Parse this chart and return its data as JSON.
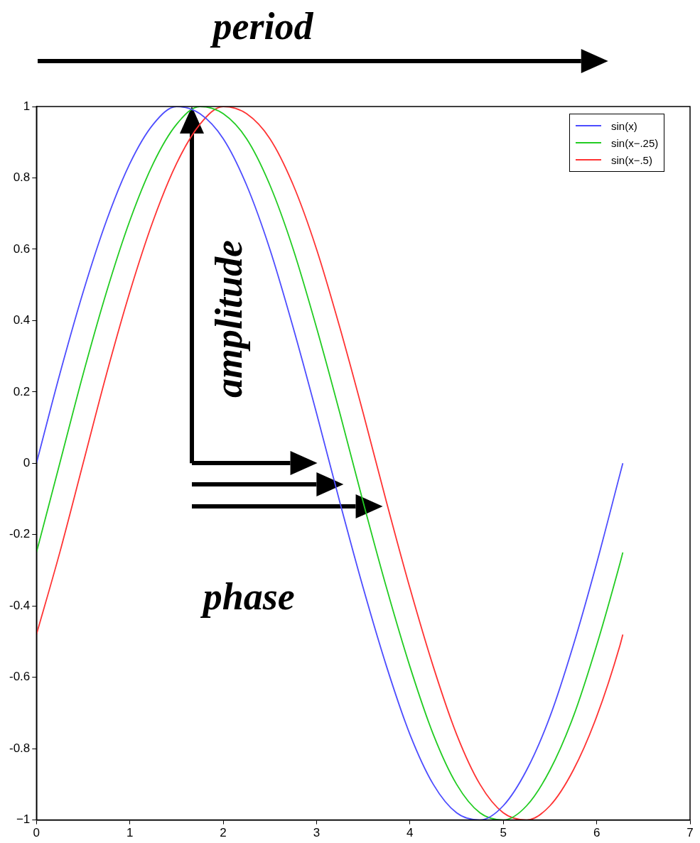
{
  "chart_data": {
    "type": "line",
    "annotations": [
      "period",
      "amplitude",
      "phase"
    ],
    "x": [
      0,
      0.25,
      0.5,
      0.75,
      1,
      1.25,
      1.5,
      1.75,
      2,
      2.25,
      2.5,
      2.75,
      3,
      3.25,
      3.5,
      3.75,
      4,
      4.25,
      4.5,
      4.75,
      5,
      5.25,
      5.5,
      5.75,
      6,
      6.25,
      6.28
    ],
    "series": [
      {
        "name": "sin(x)",
        "color": "#4d4dff",
        "values": [
          0,
          0.25,
          0.48,
          0.68,
          0.84,
          0.95,
          1.0,
          0.98,
          0.91,
          0.78,
          0.6,
          0.38,
          0.14,
          -0.11,
          -0.35,
          -0.57,
          -0.76,
          -0.9,
          -0.98,
          -1.0,
          -0.96,
          -0.86,
          -0.71,
          -0.51,
          -0.28,
          -0.03,
          0.0
        ]
      },
      {
        "name": "sin(x−.25)",
        "color": "#22cc22",
        "values": [
          -0.25,
          0,
          0.25,
          0.48,
          0.68,
          0.84,
          0.95,
          1.0,
          0.98,
          0.91,
          0.78,
          0.6,
          0.38,
          0.14,
          -0.11,
          -0.35,
          -0.57,
          -0.76,
          -0.9,
          -0.98,
          -1.0,
          -0.96,
          -0.86,
          -0.71,
          -0.51,
          -0.28,
          -0.25
        ]
      },
      {
        "name": "sin(x−.5)",
        "color": "#ff3333",
        "values": [
          -0.48,
          -0.25,
          0,
          0.25,
          0.48,
          0.68,
          0.84,
          0.95,
          1.0,
          0.98,
          0.91,
          0.78,
          0.6,
          0.38,
          0.14,
          -0.11,
          -0.35,
          -0.57,
          -0.76,
          -0.9,
          -0.98,
          -1.0,
          -0.96,
          -0.86,
          -0.71,
          -0.51,
          -0.48
        ]
      }
    ],
    "xlim": [
      0,
      7
    ],
    "xticks": [
      0,
      1,
      2,
      3,
      4,
      5,
      6,
      7
    ],
    "ylim": [
      -1,
      1
    ],
    "yticks": [
      {
        "value": -1,
        "label": "−1"
      },
      -0.8,
      -0.6,
      -0.4,
      -0.2,
      0,
      0.2,
      0.4,
      0.6,
      0.8,
      1
    ],
    "grid": false,
    "legend": "top right",
    "marker": "none"
  }
}
